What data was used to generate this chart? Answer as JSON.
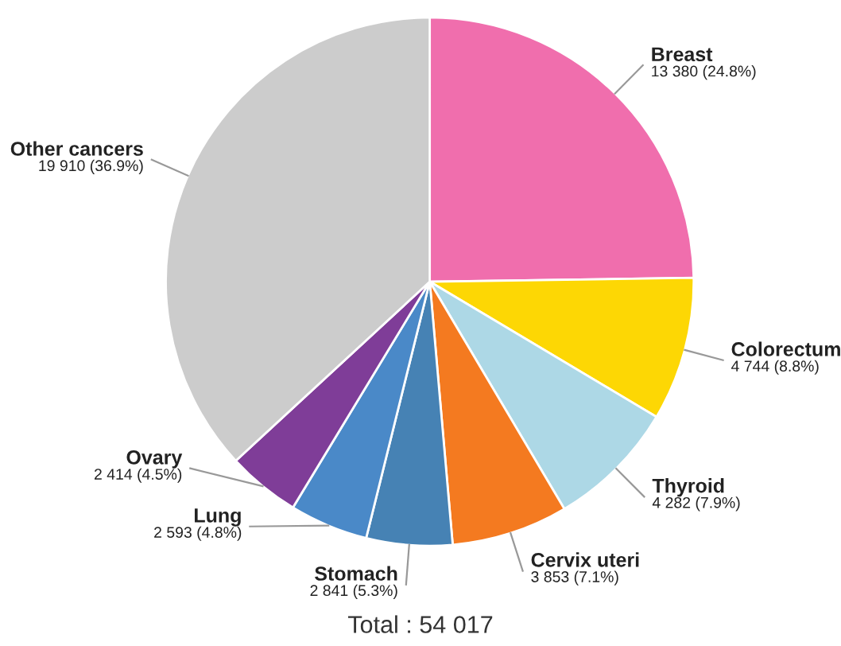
{
  "chart_data": {
    "type": "pie",
    "categories": [
      "Breast",
      "Colorectum",
      "Thyroid",
      "Cervix uteri",
      "Stomach",
      "Lung",
      "Ovary",
      "Other cancers"
    ],
    "values": [
      13380,
      4744,
      4282,
      3853,
      2841,
      2593,
      2414,
      19910
    ],
    "value_labels": [
      "13 380 (24.8%)",
      "4 744 (8.8%)",
      "4 282 (7.9%)",
      "3 853 (7.1%)",
      "2 841 (5.3%)",
      "2 593 (4.8%)",
      "2 414 (4.5%)",
      "19 910 (36.9%)"
    ],
    "colors": [
      "#f06ead",
      "#fdd704",
      "#add8e6",
      "#f47a20",
      "#4682b4",
      "#4a89c8",
      "#7f3d98",
      "#cccccc"
    ],
    "annotations": [
      "Total : 54 017"
    ]
  }
}
